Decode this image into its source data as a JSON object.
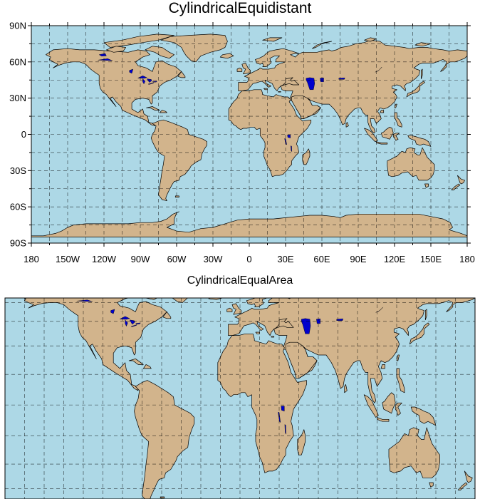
{
  "maps": [
    {
      "id": "map1",
      "title": "CylindricalEquidistant",
      "lat_labels": [
        "90N",
        "60N",
        "30N",
        "0",
        "30S",
        "60S",
        "90S"
      ],
      "lon_labels": [
        "180",
        "150W",
        "120W",
        "90W",
        "60W",
        "30W",
        "0",
        "30E",
        "60E",
        "90E",
        "120E",
        "150E",
        "180"
      ]
    },
    {
      "id": "map2",
      "title": "CylindricalEqualArea"
    }
  ],
  "colors": {
    "ocean": "#add8e6",
    "land": "#d2b48c",
    "lakes": "#0000cd"
  }
}
